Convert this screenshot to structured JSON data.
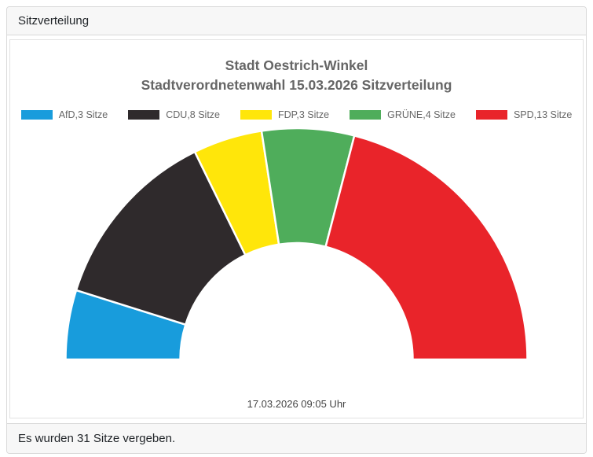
{
  "window": {
    "header_title": "Sitzverteilung",
    "footer_text": "Es wurden 31 Sitze vergeben."
  },
  "chart_data": {
    "type": "pie",
    "variant": "half-donut",
    "title_line1": "Stadt Oestrich-Winkel",
    "title_line2": "Stadtverordnetenwahl 15.03.2026 Sitzverteilung",
    "total_seats": 31,
    "unit": "Sitze",
    "legend_position": "top",
    "inner_radius_ratio": 0.505,
    "start_angle_deg": 180,
    "end_angle_deg": 0,
    "series": [
      {
        "name": "AfD",
        "seats": 3,
        "legend_label": "AfD,3 Sitze",
        "color": "#189CDC"
      },
      {
        "name": "CDU",
        "seats": 8,
        "legend_label": "CDU,8 Sitze",
        "color": "#2F2A2C"
      },
      {
        "name": "FDP",
        "seats": 3,
        "legend_label": "FDP,3 Sitze",
        "color": "#FFE60A"
      },
      {
        "name": "GRÜNE",
        "seats": 4,
        "legend_label": "GRÜNE,4 Sitze",
        "color": "#4FAD5B"
      },
      {
        "name": "SPD",
        "seats": 13,
        "legend_label": "SPD,13 Sitze",
        "color": "#E9242A"
      }
    ],
    "timestamp": "17.03.2026 09:05 Uhr"
  }
}
